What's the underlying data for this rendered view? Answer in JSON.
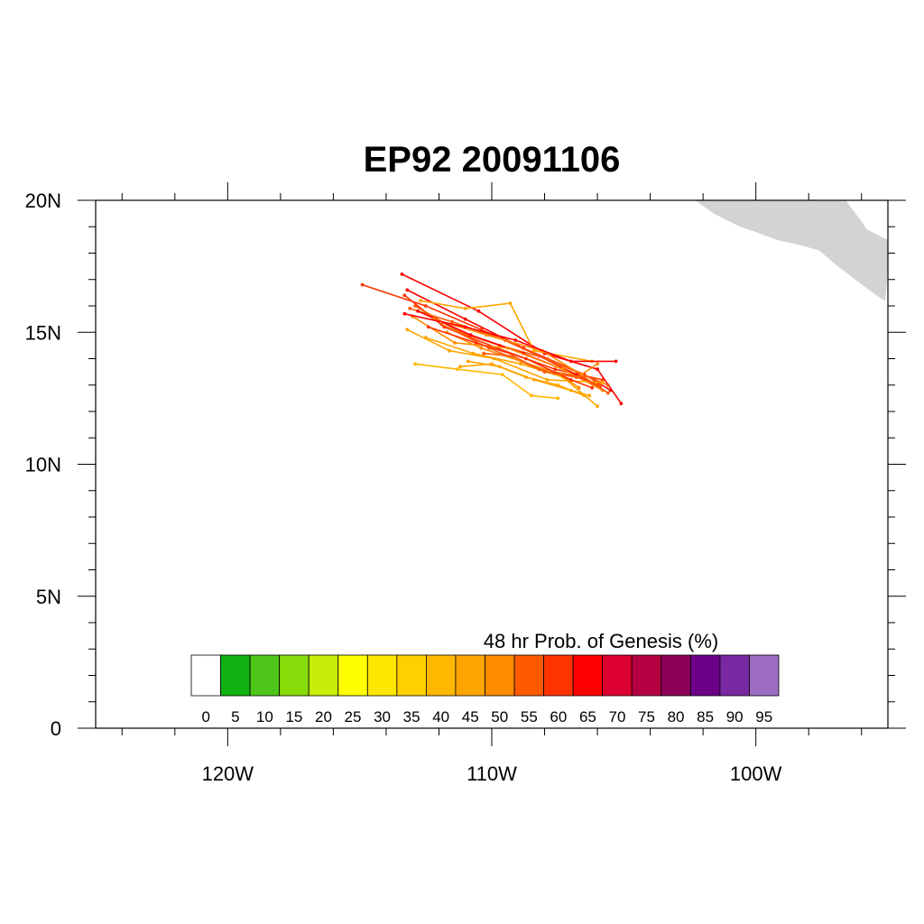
{
  "title": "EP92 20091106",
  "map": {
    "lon_range": [
      -125,
      -95
    ],
    "lat_range": [
      0,
      20
    ],
    "lat_labels": [
      {
        "lat": 20,
        "text": "20N"
      },
      {
        "lat": 15,
        "text": "15N"
      },
      {
        "lat": 10,
        "text": "10N"
      },
      {
        "lat": 5,
        "text": "5N"
      },
      {
        "lat": 0,
        "text": "0"
      }
    ],
    "lon_labels": [
      {
        "lon": -120,
        "text": "120W"
      },
      {
        "lon": -110,
        "text": "110W"
      },
      {
        "lon": -100,
        "text": "100W"
      }
    ],
    "land_color": "#d3d3d3",
    "coastline": [
      [
        -102.3,
        20.0
      ],
      [
        -101.6,
        19.5
      ],
      [
        -100.6,
        19.0
      ],
      [
        -100.0,
        18.8
      ],
      [
        -99.2,
        18.5
      ],
      [
        -98.3,
        18.3
      ],
      [
        -97.6,
        18.1
      ],
      [
        -96.9,
        17.5
      ],
      [
        -96.1,
        16.9
      ],
      [
        -95.3,
        16.3
      ],
      [
        -95.1,
        16.2
      ],
      [
        -95.0,
        17.4
      ],
      [
        -95.0,
        18.5
      ],
      [
        -95.4,
        18.7
      ],
      [
        -95.8,
        18.9
      ],
      [
        -96.0,
        19.2
      ],
      [
        -96.3,
        19.6
      ],
      [
        -96.6,
        20.0
      ]
    ]
  },
  "colorbar": {
    "title": "48 hr Prob. of Genesis (%)",
    "labels": [
      "0",
      "5",
      "10",
      "15",
      "20",
      "25",
      "30",
      "35",
      "40",
      "45",
      "50",
      "55",
      "60",
      "65",
      "70",
      "75",
      "80",
      "85",
      "90",
      "95"
    ],
    "colors": [
      "#ffffff",
      "#12b212",
      "#4ec61a",
      "#88dc0a",
      "#c6ee0a",
      "#ffff00",
      "#ffe600",
      "#ffcf00",
      "#ffb700",
      "#ffa500",
      "#ff8c00",
      "#ff5a00",
      "#ff3300",
      "#ff0000",
      "#de0030",
      "#b40040",
      "#8c0058",
      "#6c0088",
      "#7828a0",
      "#9c6cc0"
    ]
  },
  "chart_data": {
    "type": "map",
    "title": "EP92 20091106",
    "xlabel": "",
    "ylabel": "",
    "xlim": [
      -125,
      -95
    ],
    "ylim": [
      0,
      20
    ],
    "series": [
      {
        "color": "#ff0000",
        "points": [
          [
            -113.4,
            17.2
          ],
          [
            -110.5,
            15.8
          ],
          [
            -108.0,
            14.2
          ],
          [
            -106.0,
            13.6
          ],
          [
            -105.1,
            12.3
          ]
        ]
      },
      {
        "color": "#ff0000",
        "points": [
          [
            -113.2,
            16.6
          ],
          [
            -111.0,
            15.5
          ],
          [
            -108.8,
            14.4
          ],
          [
            -106.5,
            13.4
          ],
          [
            -105.5,
            12.8
          ]
        ]
      },
      {
        "color": "#ff3300",
        "points": [
          [
            -114.9,
            16.8
          ],
          [
            -112.5,
            16.0
          ],
          [
            -110.4,
            15.1
          ],
          [
            -108.2,
            14.1
          ],
          [
            -106.0,
            13.0
          ]
        ]
      },
      {
        "color": "#ff3300",
        "points": [
          [
            -113.3,
            16.4
          ],
          [
            -111.8,
            15.2
          ],
          [
            -109.8,
            14.4
          ],
          [
            -107.6,
            13.6
          ],
          [
            -105.8,
            13.2
          ]
        ]
      },
      {
        "color": "#ff5a00",
        "points": [
          [
            -112.9,
            16.0
          ],
          [
            -111.2,
            15.0
          ],
          [
            -109.7,
            14.5
          ],
          [
            -107.9,
            14.0
          ],
          [
            -105.9,
            13.1
          ]
        ]
      },
      {
        "color": "#ff5a00",
        "points": [
          [
            -113.1,
            15.9
          ],
          [
            -111.5,
            15.4
          ],
          [
            -109.5,
            14.7
          ],
          [
            -107.5,
            13.8
          ],
          [
            -105.6,
            13.0
          ]
        ]
      },
      {
        "color": "#ff0000",
        "points": [
          [
            -112.8,
            15.8
          ],
          [
            -110.8,
            14.9
          ],
          [
            -108.8,
            14.2
          ],
          [
            -106.8,
            13.4
          ],
          [
            -105.9,
            12.9
          ]
        ]
      },
      {
        "color": "#ff8c00",
        "points": [
          [
            -113.0,
            15.6
          ],
          [
            -111.4,
            14.6
          ],
          [
            -109.4,
            14.4
          ],
          [
            -107.3,
            13.6
          ],
          [
            -105.8,
            12.8
          ]
        ]
      },
      {
        "color": "#ffa500",
        "points": [
          [
            -112.7,
            16.2
          ],
          [
            -111.0,
            15.9
          ],
          [
            -109.3,
            16.1
          ],
          [
            -108.4,
            14.3
          ],
          [
            -106.2,
            13.9
          ]
        ]
      },
      {
        "color": "#ffa500",
        "points": [
          [
            -113.2,
            15.1
          ],
          [
            -111.6,
            14.3
          ],
          [
            -109.9,
            14.0
          ],
          [
            -107.9,
            13.2
          ],
          [
            -105.8,
            13.1
          ]
        ]
      },
      {
        "color": "#ffa500",
        "points": [
          [
            -112.5,
            14.8
          ],
          [
            -110.7,
            14.2
          ],
          [
            -108.9,
            13.8
          ],
          [
            -107.3,
            13.3
          ],
          [
            -106.0,
            12.2
          ]
        ]
      },
      {
        "color": "#ffb700",
        "points": [
          [
            -112.9,
            13.8
          ],
          [
            -111.3,
            13.6
          ],
          [
            -109.6,
            13.4
          ],
          [
            -108.5,
            12.6
          ],
          [
            -107.5,
            12.5
          ]
        ]
      },
      {
        "color": "#ffa500",
        "points": [
          [
            -111.2,
            13.7
          ],
          [
            -110.0,
            13.8
          ],
          [
            -108.7,
            13.3
          ],
          [
            -107.5,
            13.0
          ],
          [
            -106.5,
            12.6
          ]
        ]
      },
      {
        "color": "#ff8c00",
        "points": [
          [
            -112.2,
            15.5
          ],
          [
            -110.2,
            14.9
          ],
          [
            -108.1,
            14.3
          ],
          [
            -106.6,
            13.4
          ],
          [
            -106.0,
            13.8
          ]
        ]
      },
      {
        "color": "#ff5a00",
        "points": [
          [
            -111.9,
            15.3
          ],
          [
            -110.1,
            14.4
          ],
          [
            -108.2,
            13.6
          ],
          [
            -106.5,
            13.3
          ],
          [
            -105.6,
            12.7
          ]
        ]
      },
      {
        "color": "#ff0000",
        "points": [
          [
            -113.3,
            15.7
          ],
          [
            -111.0,
            15.2
          ],
          [
            -109.1,
            14.7
          ],
          [
            -107.0,
            13.9
          ],
          [
            -105.3,
            13.9
          ]
        ]
      },
      {
        "color": "#ff8c00",
        "points": [
          [
            -111.7,
            15.0
          ],
          [
            -110.4,
            14.4
          ],
          [
            -108.9,
            13.9
          ],
          [
            -107.4,
            13.4
          ],
          [
            -106.7,
            12.9
          ]
        ]
      },
      {
        "color": "#ffa500",
        "points": [
          [
            -110.9,
            13.9
          ],
          [
            -109.7,
            13.7
          ],
          [
            -108.4,
            13.2
          ],
          [
            -107.0,
            12.8
          ],
          [
            -106.3,
            12.6
          ]
        ]
      },
      {
        "color": "#ff3300",
        "points": [
          [
            -112.4,
            15.2
          ],
          [
            -110.6,
            14.6
          ],
          [
            -108.7,
            14.0
          ],
          [
            -107.0,
            13.2
          ],
          [
            -106.2,
            12.9
          ]
        ]
      },
      {
        "color": "#ff5a00",
        "points": [
          [
            -110.3,
            14.2
          ],
          [
            -109.2,
            14.1
          ],
          [
            -108.0,
            13.5
          ],
          [
            -106.8,
            13.3
          ],
          [
            -105.9,
            13.0
          ]
        ]
      }
    ]
  }
}
